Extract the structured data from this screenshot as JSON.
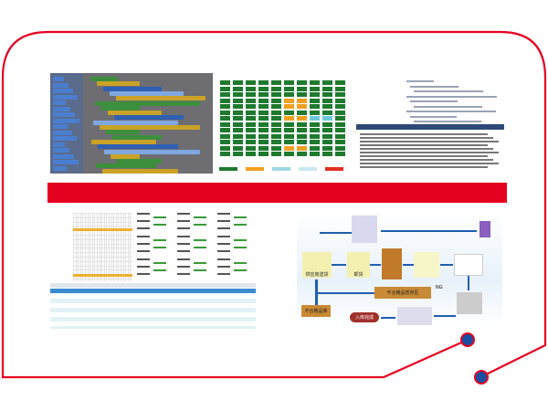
{
  "colors": {
    "frame": "#e60020",
    "node": "#1a4fa0",
    "accent_bar": "#e60020"
  },
  "flowchart": {
    "supplier_delivery": "供应商送货",
    "unloading": "卸货",
    "ng_staging": "不合格品暂存区",
    "ng_warehouse": "不合格品库",
    "complete": "入库完成",
    "ng_label": "NG"
  }
}
